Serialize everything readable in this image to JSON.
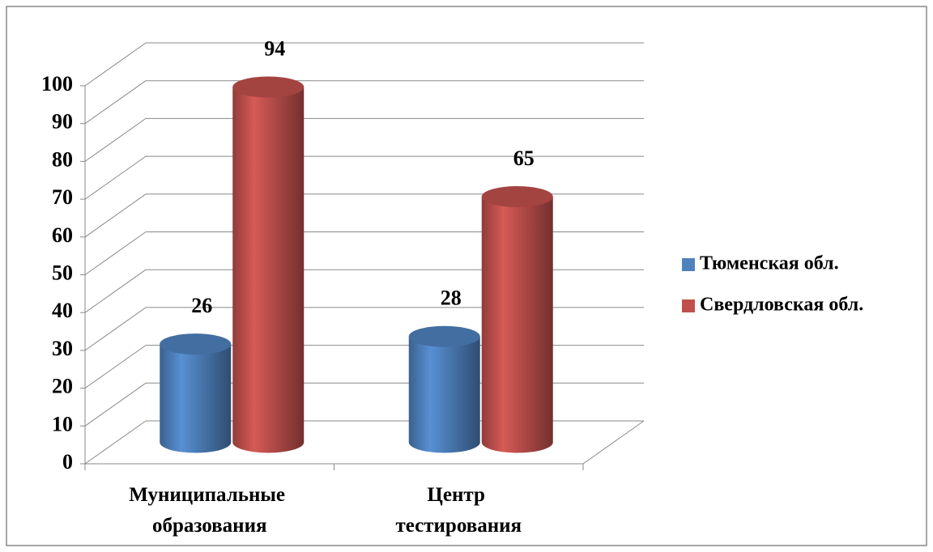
{
  "chart_data": {
    "type": "bar3d",
    "categories": [
      "Муниципальные образования",
      "Центр тестирования"
    ],
    "series": [
      {
        "name": "Тюменская обл.",
        "color": "#4f81bd",
        "values": [
          26,
          28
        ]
      },
      {
        "name": "Свердловская обл.",
        "color": "#c0504d",
        "values": [
          94,
          65
        ]
      }
    ],
    "ylim": [
      0,
      100
    ],
    "yticks": [
      0,
      10,
      20,
      30,
      40,
      50,
      60,
      70,
      80,
      90,
      100
    ],
    "grid": true,
    "legend": "right"
  }
}
